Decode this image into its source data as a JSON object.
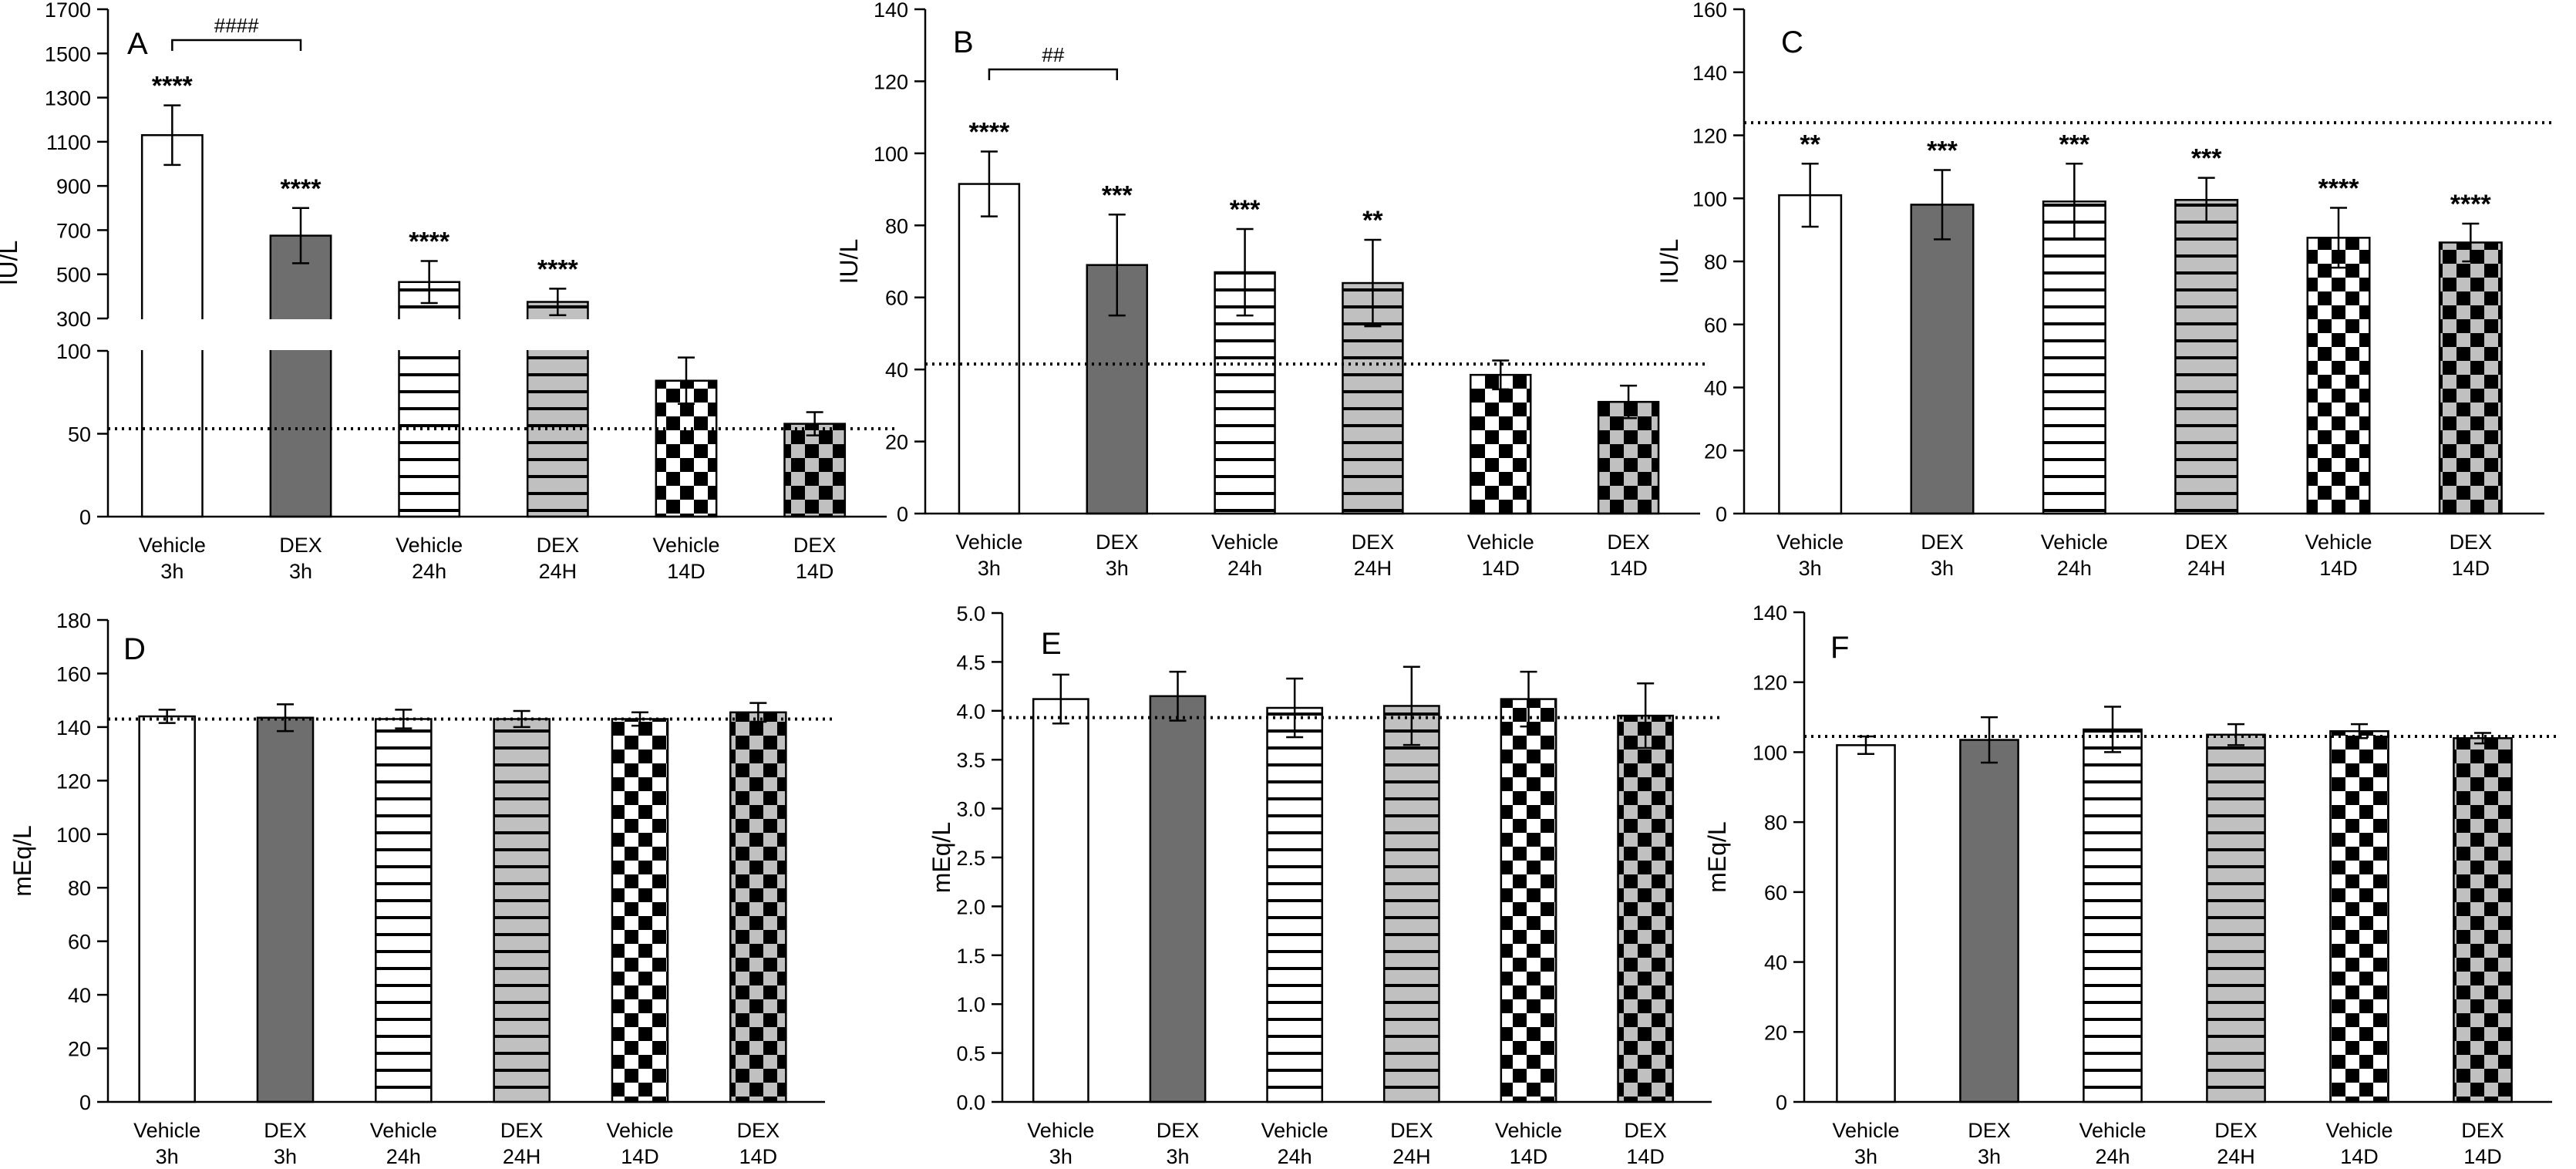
{
  "groups": [
    "Vehicle 3h",
    "DEX 3h",
    "Vehicle 24h",
    "DEX 24H",
    "Vehicle 14D",
    "DEX 14D"
  ],
  "colors": {
    "white": "#ffffff",
    "dark_gray": "#6e6e6e",
    "light_gray": "#c0c0c0",
    "black": "#000000"
  },
  "patterns": [
    "solid-white",
    "solid-dark-gray",
    "white-horizontal-stripes",
    "gray-horizontal-stripes",
    "white-checkerboard",
    "gray-checkerboard"
  ],
  "chart_data": [
    {
      "panel": "A",
      "type": "bar",
      "broken_axis": true,
      "ylabel": "IU/L",
      "categories": [
        [
          "Vehicle",
          "3h"
        ],
        [
          "DEX",
          "3h"
        ],
        [
          "Vehicle",
          "24h"
        ],
        [
          "DEX",
          "24H"
        ],
        [
          "Vehicle",
          "14D"
        ],
        [
          "DEX",
          "14D"
        ]
      ],
      "values": [
        1130,
        675,
        465,
        375,
        82,
        56
      ],
      "errors": [
        135,
        125,
        95,
        60,
        14,
        7
      ],
      "lower_segment": {
        "ylim": [
          0,
          100
        ],
        "ticks": [
          0,
          50,
          100
        ]
      },
      "upper_segment": {
        "ylim": [
          300,
          1700
        ],
        "ticks": [
          300,
          500,
          700,
          900,
          1100,
          1300,
          1500,
          1700
        ]
      },
      "reference_line": 53,
      "annotations": [
        "****",
        "****",
        "****",
        "****",
        "",
        ""
      ],
      "bracket": {
        "from": 0,
        "to": 1,
        "label": "####"
      }
    },
    {
      "panel": "B",
      "type": "bar",
      "ylabel": "IU/L",
      "categories": [
        [
          "Vehicle",
          "3h"
        ],
        [
          "DEX",
          "3h"
        ],
        [
          "Vehicle",
          "24h"
        ],
        [
          "DEX",
          "24H"
        ],
        [
          "Vehicle",
          "14D"
        ],
        [
          "DEX",
          "14D"
        ]
      ],
      "values": [
        91.5,
        69,
        67,
        64,
        38.5,
        31
      ],
      "errors": [
        9,
        14,
        12,
        12,
        4,
        4.5
      ],
      "ylim": [
        0,
        140
      ],
      "ticks": [
        0,
        20,
        40,
        60,
        80,
        100,
        120,
        140
      ],
      "reference_line": 41.5,
      "annotations": [
        "****",
        "***",
        "***",
        "**",
        "",
        ""
      ],
      "bracket": {
        "from": 0,
        "to": 1,
        "label": "##"
      }
    },
    {
      "panel": "C",
      "type": "bar",
      "ylabel": "IU/L",
      "categories": [
        [
          "Vehicle",
          "3h"
        ],
        [
          "DEX",
          "3h"
        ],
        [
          "Vehicle",
          "24h"
        ],
        [
          "DEX",
          "24H"
        ],
        [
          "Vehicle",
          "14D"
        ],
        [
          "DEX",
          "14D"
        ]
      ],
      "values": [
        101,
        98,
        99,
        99.5,
        87.5,
        86
      ],
      "errors": [
        10,
        11,
        12,
        7,
        9.5,
        6
      ],
      "ylim": [
        0,
        160
      ],
      "ticks": [
        0,
        20,
        40,
        60,
        80,
        100,
        120,
        140,
        160
      ],
      "reference_line": 124,
      "annotations": [
        "**",
        "***",
        "***",
        "***",
        "****",
        "****"
      ]
    },
    {
      "panel": "D",
      "type": "bar",
      "ylabel": "mEq/L",
      "categories": [
        [
          "Vehicle",
          "3h"
        ],
        [
          "DEX",
          "3h"
        ],
        [
          "Vehicle",
          "24h"
        ],
        [
          "DEX",
          "24H"
        ],
        [
          "Vehicle",
          "14D"
        ],
        [
          "DEX",
          "14D"
        ]
      ],
      "values": [
        144,
        143.5,
        143,
        143,
        143,
        145.5
      ],
      "errors": [
        2.5,
        5,
        3.5,
        3,
        2.5,
        3.5
      ],
      "ylim": [
        0,
        180
      ],
      "ticks": [
        0,
        20,
        40,
        60,
        80,
        100,
        120,
        140,
        160,
        180
      ],
      "reference_line": 143
    },
    {
      "panel": "E",
      "type": "bar",
      "ylabel": "mEq/L",
      "categories": [
        [
          "Vehicle",
          "3h"
        ],
        [
          "DEX",
          "3h"
        ],
        [
          "Vehicle",
          "24h"
        ],
        [
          "DEX",
          "24H"
        ],
        [
          "Vehicle",
          "14D"
        ],
        [
          "DEX",
          "14D"
        ]
      ],
      "values": [
        4.12,
        4.15,
        4.03,
        4.05,
        4.12,
        3.95
      ],
      "errors": [
        0.25,
        0.25,
        0.3,
        0.4,
        0.28,
        0.33
      ],
      "ylim": [
        0,
        5
      ],
      "ticks": [
        "0.0",
        "0.5",
        "1.0",
        "1.5",
        "2.0",
        "2.5",
        "3.0",
        "3.5",
        "4.0",
        "4.5",
        "5.0"
      ],
      "reference_line": 3.93
    },
    {
      "panel": "F",
      "type": "bar",
      "ylabel": "mEq/L",
      "categories": [
        [
          "Vehicle",
          "3h"
        ],
        [
          "DEX",
          "3h"
        ],
        [
          "Vehicle",
          "24h"
        ],
        [
          "DEX",
          "24H"
        ],
        [
          "Vehicle",
          "14D"
        ],
        [
          "DEX",
          "14D"
        ]
      ],
      "values": [
        102,
        103.5,
        106.5,
        105,
        106,
        104
      ],
      "errors": [
        2.5,
        6.5,
        6.5,
        3,
        2,
        1.5
      ],
      "ylim": [
        0,
        140
      ],
      "ticks": [
        0,
        20,
        40,
        60,
        80,
        100,
        120,
        140
      ],
      "reference_line": 104.5
    }
  ]
}
